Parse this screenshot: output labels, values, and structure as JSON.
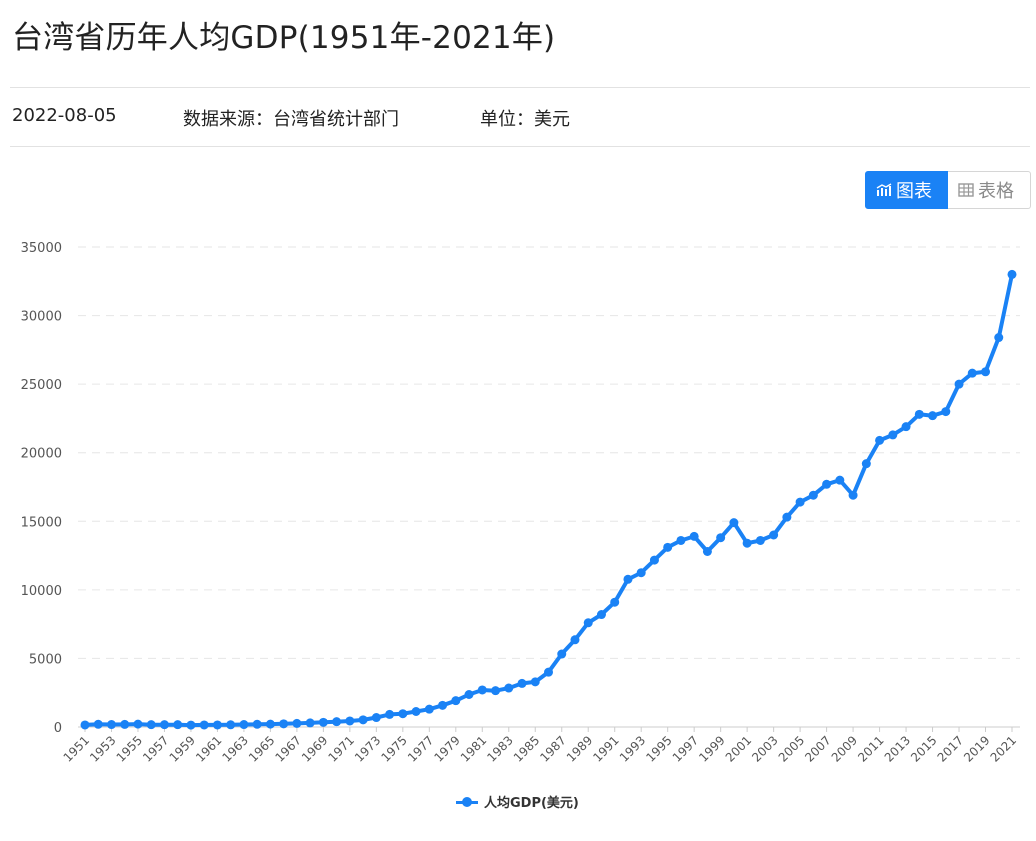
{
  "header": {
    "title": "台湾省历年人均GDP(1951年-2021年)",
    "date": "2022-08-05",
    "source_label": "数据来源：",
    "source_value": "台湾省统计部门",
    "unit_label": "单位：",
    "unit_value": "美元"
  },
  "view_toggle": {
    "chart_label": "图表",
    "table_label": "表格",
    "chart_icon": "chart-icon",
    "table_icon": "table-icon"
  },
  "colors": {
    "accent": "#1a82f5",
    "grid": "#e6e6e6",
    "axis_text": "#555555"
  },
  "chart_data": {
    "type": "line",
    "ylim": [
      0,
      35000
    ],
    "yticks": [
      0,
      5000,
      10000,
      15000,
      20000,
      25000,
      30000,
      35000
    ],
    "grid": "horizontal dashed",
    "legend_position": "bottom-center",
    "x": [
      1951,
      1952,
      1953,
      1954,
      1955,
      1956,
      1957,
      1958,
      1959,
      1960,
      1961,
      1962,
      1963,
      1964,
      1965,
      1966,
      1967,
      1968,
      1969,
      1970,
      1971,
      1972,
      1973,
      1974,
      1975,
      1976,
      1977,
      1978,
      1979,
      1980,
      1981,
      1982,
      1983,
      1984,
      1985,
      1986,
      1987,
      1988,
      1989,
      1990,
      1991,
      1992,
      1993,
      1994,
      1995,
      1996,
      1997,
      1998,
      1999,
      2000,
      2001,
      2002,
      2003,
      2004,
      2005,
      2006,
      2007,
      2008,
      2009,
      2010,
      2011,
      2012,
      2013,
      2014,
      2015,
      2016,
      2017,
      2018,
      2019,
      2020,
      2021
    ],
    "xtick_labels": [
      "1951",
      "1953",
      "1955",
      "1957",
      "1959",
      "1961",
      "1963",
      "1965",
      "1967",
      "1969",
      "1971",
      "1973",
      "1975",
      "1977",
      "1979",
      "1981",
      "1983",
      "1985",
      "1987",
      "1989",
      "1991",
      "1993",
      "1995",
      "1997",
      "1999",
      "2001",
      "2003",
      "2005",
      "2007",
      "2009",
      "2011",
      "2013",
      "2015",
      "2017",
      "2019",
      "2021"
    ],
    "series": [
      {
        "name": "人均GDP(美元)",
        "values": [
          150,
          200,
          180,
          190,
          210,
          170,
          170,
          170,
          140,
          150,
          150,
          160,
          180,
          200,
          210,
          230,
          260,
          300,
          340,
          390,
          440,
          520,
          690,
          920,
          970,
          1130,
          1300,
          1580,
          1920,
          2370,
          2700,
          2650,
          2840,
          3180,
          3290,
          4000,
          5320,
          6360,
          7600,
          8200,
          9100,
          10770,
          11250,
          12170,
          13100,
          13600,
          13900,
          12800,
          13800,
          14900,
          13400,
          13600,
          14000,
          15300,
          16400,
          16900,
          17700,
          18000,
          16900,
          19200,
          20900,
          21300,
          21900,
          22800,
          22700,
          23000,
          25000,
          25800,
          25900,
          28400,
          33000
        ]
      }
    ]
  }
}
